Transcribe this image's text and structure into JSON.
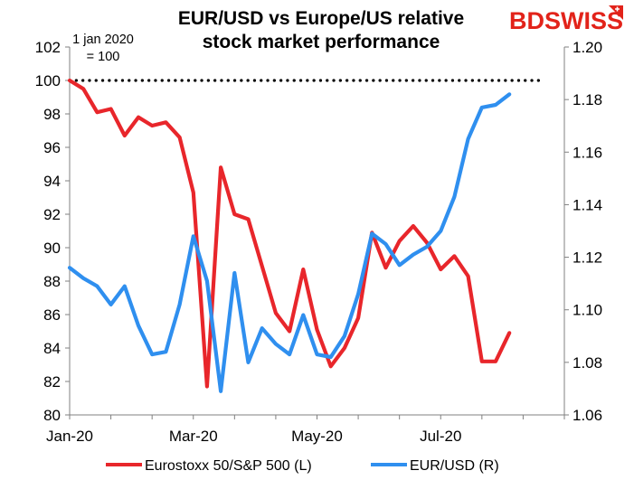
{
  "chart_data": {
    "type": "line",
    "title": [
      "EUR/USD vs Europe/US relative",
      "stock market performance"
    ],
    "annotation": [
      "1 jan 2020",
      "= 100"
    ],
    "logo": "BDSWISS",
    "x_tick_labels": [
      "Jan-20",
      "Mar-20",
      "May-20",
      "Jul-20"
    ],
    "y_left": {
      "min": 80,
      "max": 102,
      "step": 2,
      "labels": [
        "80",
        "82",
        "84",
        "86",
        "88",
        "90",
        "92",
        "94",
        "96",
        "98",
        "100",
        "102"
      ]
    },
    "y_right": {
      "min": 1.06,
      "max": 1.2,
      "step": 0.02,
      "labels": [
        "1.06",
        "1.08",
        "1.10",
        "1.12",
        "1.14",
        "1.16",
        "1.18",
        "1.20"
      ]
    },
    "reference_line": {
      "axis": "left",
      "value": 100,
      "style": "dotted"
    },
    "x_count": 36,
    "series": [
      {
        "name": "Eurostoxx 50/S&P 500 (L)",
        "axis": "left",
        "color": "#e8262b",
        "values": [
          100.0,
          99.5,
          98.1,
          98.3,
          96.7,
          97.8,
          97.3,
          97.5,
          96.6,
          93.3,
          81.7,
          94.8,
          92.0,
          91.7,
          88.9,
          86.1,
          85.0,
          88.7,
          85.1,
          82.9,
          84.0,
          85.8,
          90.9,
          88.8,
          90.4,
          91.3,
          90.3,
          88.7,
          89.5,
          88.3,
          83.2,
          83.2,
          84.9
        ]
      },
      {
        "name": "EUR/USD (R)",
        "axis": "right",
        "color": "#2f8fef",
        "values": [
          1.116,
          1.112,
          1.109,
          1.102,
          1.109,
          1.094,
          1.083,
          1.084,
          1.102,
          1.128,
          1.111,
          1.069,
          1.114,
          1.08,
          1.093,
          1.087,
          1.083,
          1.098,
          1.083,
          1.082,
          1.09,
          1.106,
          1.129,
          1.125,
          1.117,
          1.121,
          1.124,
          1.13,
          1.143,
          1.165,
          1.177,
          1.178,
          1.182
        ]
      }
    ]
  }
}
